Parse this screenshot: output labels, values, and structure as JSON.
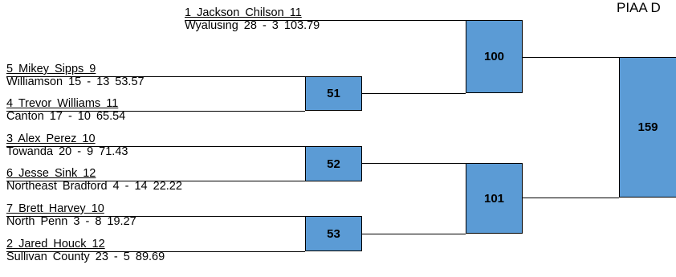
{
  "title": "PIAA D",
  "wrestlers": [
    {
      "seed_name": "1  Jackson  Chilson  11",
      "team_record": "Wyalusing  28 - 3  103.79"
    },
    {
      "seed_name": "5  Mikey  Sipps  9",
      "team_record": "Williamson  15 - 13  53.57"
    },
    {
      "seed_name": "4  Trevor  Williams  11",
      "team_record": "Canton  17 - 10  65.54"
    },
    {
      "seed_name": "3  Alex  Perez  10",
      "team_record": "Towanda  20 - 9  71.43"
    },
    {
      "seed_name": "6  Jesse  Sink  12",
      "team_record": "Northeast Bradford  4 - 14  22.22"
    },
    {
      "seed_name": "7  Brett  Harvey  10",
      "team_record": "North Penn  3 - 8  19.27"
    },
    {
      "seed_name": "2  Jared  Houck  12",
      "team_record": "Sullivan County  23 - 5  89.69"
    }
  ],
  "bouts": {
    "b51": "51",
    "b52": "52",
    "b53": "53",
    "b100": "100",
    "b101": "101",
    "b159": "159"
  },
  "colors": {
    "bout_box": "#5b9bd5",
    "line": "#000000"
  }
}
